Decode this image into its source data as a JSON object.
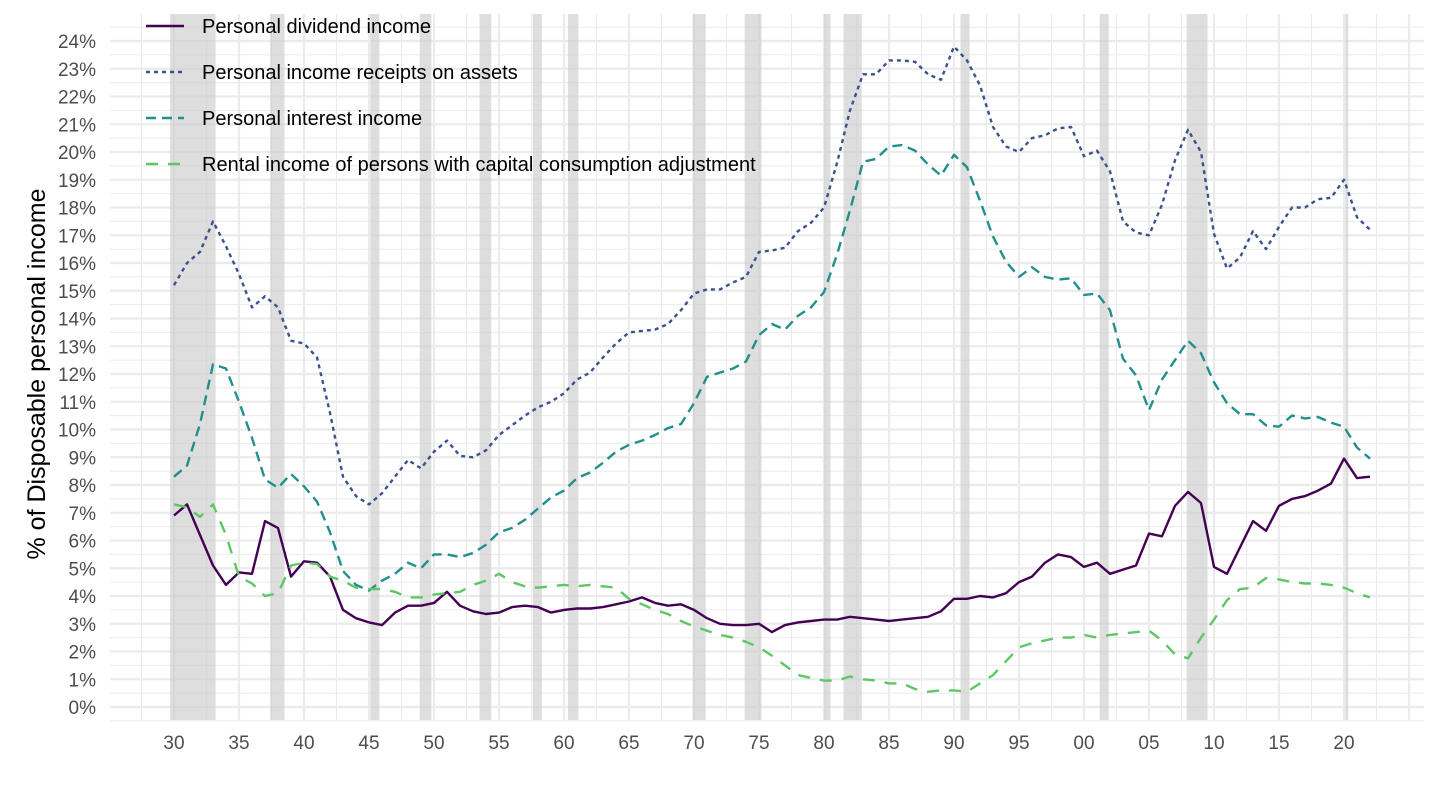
{
  "chart_data": {
    "type": "line",
    "title": "",
    "xlabel": "",
    "ylabel": "% of Disposable personal income",
    "x_tick_labels": [
      "30",
      "35",
      "40",
      "45",
      "50",
      "55",
      "60",
      "65",
      "70",
      "75",
      "80",
      "85",
      "90",
      "95",
      "00",
      "05",
      "10",
      "15",
      "20"
    ],
    "x_tick_years": [
      1930,
      1935,
      1940,
      1945,
      1950,
      1955,
      1960,
      1965,
      1970,
      1975,
      1980,
      1985,
      1990,
      1995,
      2000,
      2005,
      2010,
      2015,
      2020
    ],
    "y_tick_labels": [
      "0%",
      "1%",
      "2%",
      "3%",
      "4%",
      "5%",
      "6%",
      "7%",
      "8%",
      "9%",
      "10%",
      "11%",
      "12%",
      "13%",
      "14%",
      "15%",
      "16%",
      "17%",
      "18%",
      "19%",
      "20%",
      "21%",
      "22%",
      "23%",
      "24%"
    ],
    "xlim": [
      1925.5,
      2026.5
    ],
    "ylim": [
      -0.5,
      24.5
    ],
    "grid": true,
    "legend_position": "top-left",
    "recessions": [
      [
        1929.7,
        1933.2
      ],
      [
        1937.4,
        1938.5
      ],
      [
        1945.1,
        1945.8
      ],
      [
        1948.9,
        1949.8
      ],
      [
        1953.5,
        1954.4
      ],
      [
        1957.6,
        1958.3
      ],
      [
        1960.3,
        1961.1
      ],
      [
        1969.9,
        1970.9
      ],
      [
        1973.9,
        1975.2
      ],
      [
        1980.0,
        1980.5
      ],
      [
        1981.5,
        1982.9
      ],
      [
        1990.5,
        1991.2
      ],
      [
        2001.2,
        2001.9
      ],
      [
        2007.9,
        2009.5
      ],
      [
        2020.1,
        2020.3
      ]
    ],
    "x": [
      1930,
      1931,
      1932,
      1933,
      1934,
      1935,
      1936,
      1937,
      1938,
      1939,
      1940,
      1941,
      1942,
      1943,
      1944,
      1945,
      1946,
      1947,
      1948,
      1949,
      1950,
      1951,
      1952,
      1953,
      1954,
      1955,
      1956,
      1957,
      1958,
      1959,
      1960,
      1961,
      1962,
      1963,
      1964,
      1965,
      1966,
      1967,
      1968,
      1969,
      1970,
      1971,
      1972,
      1973,
      1974,
      1975,
      1976,
      1977,
      1978,
      1979,
      1980,
      1981,
      1982,
      1983,
      1984,
      1985,
      1986,
      1987,
      1988,
      1989,
      1990,
      1991,
      1992,
      1993,
      1994,
      1995,
      1996,
      1997,
      1998,
      1999,
      2000,
      2001,
      2002,
      2003,
      2004,
      2005,
      2006,
      2007,
      2008,
      2009,
      2010,
      2011,
      2012,
      2013,
      2014,
      2015,
      2016,
      2017,
      2018,
      2019,
      2020,
      2021,
      2022
    ],
    "series": [
      {
        "name": "Personal dividend income",
        "color": "#440154",
        "dash": "solid",
        "values": [
          6.9,
          7.3,
          6.2,
          5.1,
          4.4,
          4.85,
          4.8,
          6.7,
          6.45,
          4.7,
          5.25,
          5.2,
          4.7,
          3.5,
          3.2,
          3.05,
          2.95,
          3.4,
          3.65,
          3.65,
          3.75,
          4.15,
          3.65,
          3.45,
          3.35,
          3.4,
          3.6,
          3.65,
          3.6,
          3.4,
          3.5,
          3.55,
          3.55,
          3.6,
          3.7,
          3.8,
          3.95,
          3.75,
          3.65,
          3.7,
          3.5,
          3.2,
          3.0,
          2.95,
          2.95,
          3.0,
          2.7,
          2.95,
          3.05,
          3.1,
          3.15,
          3.15,
          3.25,
          3.2,
          3.15,
          3.1,
          3.15,
          3.2,
          3.25,
          3.45,
          3.9,
          3.9,
          4.0,
          3.95,
          4.1,
          4.5,
          4.7,
          5.2,
          5.5,
          5.4,
          5.05,
          5.2,
          4.8,
          4.95,
          5.1,
          6.25,
          6.15,
          7.25,
          7.75,
          7.35,
          5.05,
          4.8,
          5.75,
          6.7,
          6.35,
          7.25,
          7.5,
          7.6,
          7.8,
          8.05,
          8.95,
          8.25,
          8.3
        ]
      },
      {
        "name": "Personal income receipts on assets",
        "color": "#3B528B",
        "dash": "dotted",
        "values": [
          15.2,
          16.0,
          16.4,
          17.5,
          16.6,
          15.6,
          14.4,
          14.8,
          14.4,
          13.2,
          13.1,
          12.6,
          10.6,
          8.3,
          7.6,
          7.3,
          7.7,
          8.3,
          8.9,
          8.6,
          9.2,
          9.6,
          9.05,
          9.0,
          9.25,
          9.8,
          10.15,
          10.5,
          10.8,
          11.0,
          11.3,
          11.8,
          12.05,
          12.6,
          13.1,
          13.5,
          13.55,
          13.6,
          13.8,
          14.3,
          14.9,
          15.05,
          15.05,
          15.3,
          15.5,
          16.4,
          16.45,
          16.55,
          17.15,
          17.45,
          18.0,
          19.6,
          21.5,
          22.8,
          22.8,
          23.3,
          23.3,
          23.25,
          22.8,
          22.6,
          23.8,
          23.3,
          22.4,
          20.9,
          20.2,
          20.0,
          20.5,
          20.6,
          20.85,
          20.9,
          19.85,
          20.05,
          19.3,
          17.5,
          17.1,
          17.0,
          18.1,
          19.7,
          20.8,
          20.0,
          17.05,
          15.8,
          16.2,
          17.15,
          16.5,
          17.3,
          18.0,
          18.0,
          18.3,
          18.35,
          19.0,
          17.65,
          17.2
        ]
      },
      {
        "name": "Personal interest income",
        "color": "#21908C",
        "dash": "dashed",
        "values": [
          8.3,
          8.7,
          10.2,
          12.35,
          12.2,
          11.0,
          9.7,
          8.2,
          7.9,
          8.4,
          7.95,
          7.4,
          6.3,
          4.9,
          4.4,
          4.2,
          4.55,
          4.8,
          5.2,
          5.0,
          5.5,
          5.5,
          5.4,
          5.55,
          5.85,
          6.3,
          6.45,
          6.75,
          7.15,
          7.55,
          7.8,
          8.25,
          8.45,
          8.8,
          9.2,
          9.45,
          9.6,
          9.8,
          10.05,
          10.2,
          10.95,
          11.9,
          12.05,
          12.2,
          12.45,
          13.4,
          13.8,
          13.6,
          14.1,
          14.4,
          14.95,
          16.3,
          17.9,
          19.65,
          19.75,
          20.2,
          20.25,
          20.05,
          19.55,
          19.15,
          19.9,
          19.45,
          18.25,
          16.95,
          16.05,
          15.5,
          15.85,
          15.5,
          15.4,
          15.45,
          14.85,
          14.9,
          14.3,
          12.55,
          11.95,
          10.7,
          11.8,
          12.5,
          13.2,
          12.75,
          11.7,
          10.95,
          10.55,
          10.55,
          10.15,
          10.1,
          10.5,
          10.4,
          10.45,
          10.25,
          10.1,
          9.35,
          8.95
        ]
      },
      {
        "name": "Rental income of persons with capital consumption adjustment",
        "color": "#5DC863",
        "dash": "longdash",
        "values": [
          7.3,
          7.2,
          6.85,
          7.3,
          6.2,
          4.7,
          4.45,
          4.0,
          4.1,
          5.1,
          5.2,
          5.15,
          4.7,
          4.55,
          4.3,
          4.25,
          4.25,
          4.15,
          3.95,
          3.95,
          4.05,
          4.1,
          4.15,
          4.4,
          4.55,
          4.8,
          4.5,
          4.35,
          4.3,
          4.35,
          4.4,
          4.35,
          4.4,
          4.35,
          4.3,
          3.9,
          3.7,
          3.5,
          3.35,
          3.1,
          2.9,
          2.75,
          2.6,
          2.5,
          2.35,
          2.15,
          1.85,
          1.5,
          1.15,
          1.05,
          0.95,
          0.95,
          1.1,
          1.0,
          0.95,
          0.85,
          0.85,
          0.65,
          0.55,
          0.6,
          0.6,
          0.55,
          0.85,
          1.15,
          1.65,
          2.15,
          2.3,
          2.4,
          2.5,
          2.5,
          2.6,
          2.5,
          2.6,
          2.65,
          2.7,
          2.75,
          2.4,
          1.9,
          1.75,
          2.5,
          3.15,
          3.85,
          4.25,
          4.3,
          4.65,
          4.6,
          4.5,
          4.45,
          4.45,
          4.4,
          4.3,
          4.1,
          3.95
        ]
      }
    ]
  }
}
